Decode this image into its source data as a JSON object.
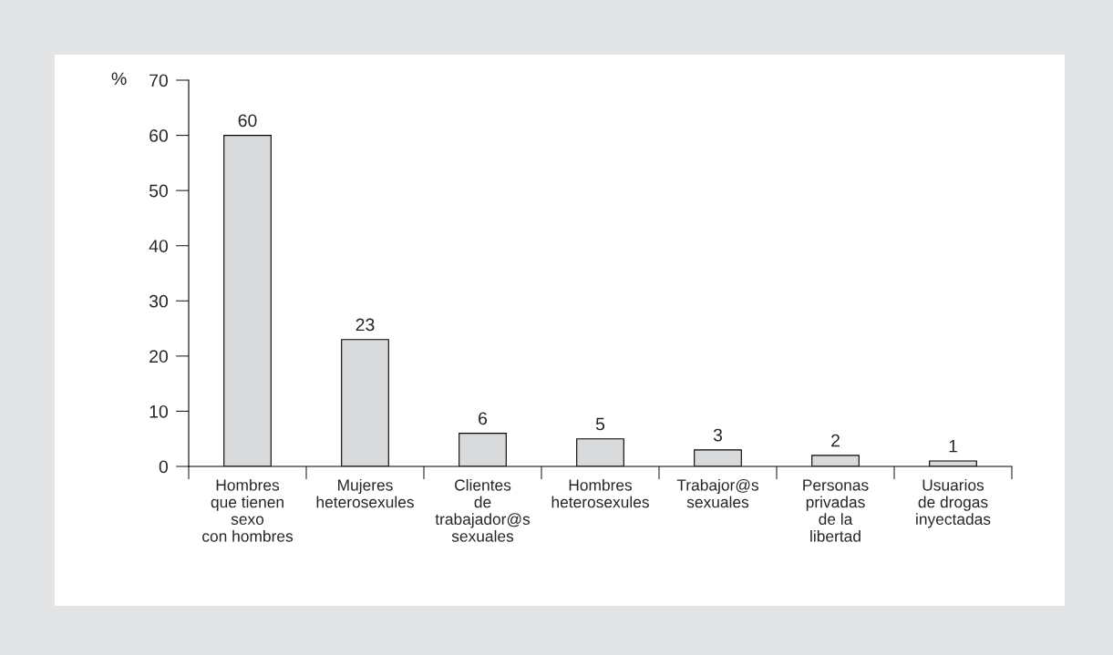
{
  "chart_data": {
    "type": "bar",
    "ylabel": "%",
    "categories": [
      "Hombres\nque tienen\nsexo\ncon hombres",
      "Mujeres\nheterosexules",
      "Clientes\nde\ntrabajador@s\nsexuales",
      "Hombres\nheterosexules",
      "Trabajor@s\nsexuales",
      "Personas\nprivadas\nde la\nlibertad",
      "Usuarios\nde drogas\ninyectadas"
    ],
    "values": [
      60,
      23,
      6,
      5,
      3,
      2,
      1
    ],
    "color": "#d9dadc",
    "ylim": [
      0,
      70
    ],
    "yticks": [
      0,
      10,
      20,
      30,
      40,
      50,
      60,
      70
    ],
    "data_labels": true
  }
}
